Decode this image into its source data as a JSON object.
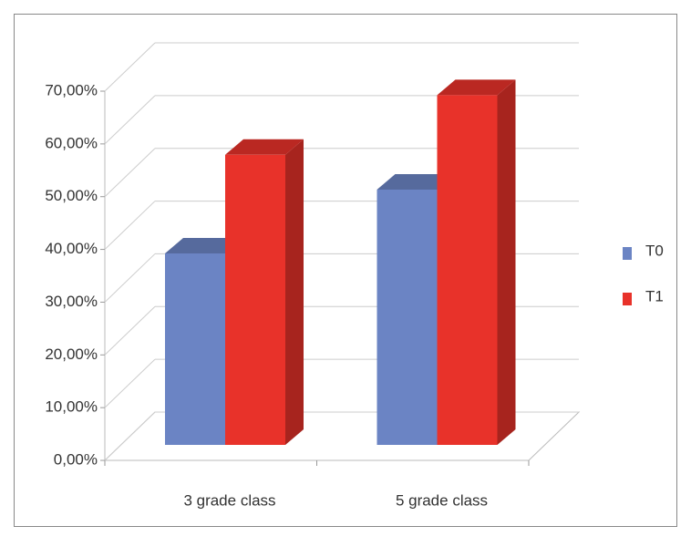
{
  "chart_data": {
    "type": "bar3d",
    "categories": [
      "3 grade class",
      "5 grade class"
    ],
    "series": [
      {
        "name": "T0",
        "color": "#6b84c4",
        "values": [
          36.3,
          48.4
        ]
      },
      {
        "name": "T1",
        "color": "#e8322a",
        "values": [
          55,
          66.3
        ]
      }
    ],
    "ylim": [
      0,
      70
    ],
    "yticks": [
      {
        "value": 0,
        "label": "0,00%"
      },
      {
        "value": 10,
        "label": "10,00%"
      },
      {
        "value": 20,
        "label": "20,00%"
      },
      {
        "value": 30,
        "label": "30,00%"
      },
      {
        "value": 40,
        "label": "40,00%"
      },
      {
        "value": 50,
        "label": "50,00%"
      },
      {
        "value": 60,
        "label": "60,00%"
      },
      {
        "value": 70,
        "label": "70,00%"
      }
    ],
    "grid": true,
    "legend": "right"
  }
}
